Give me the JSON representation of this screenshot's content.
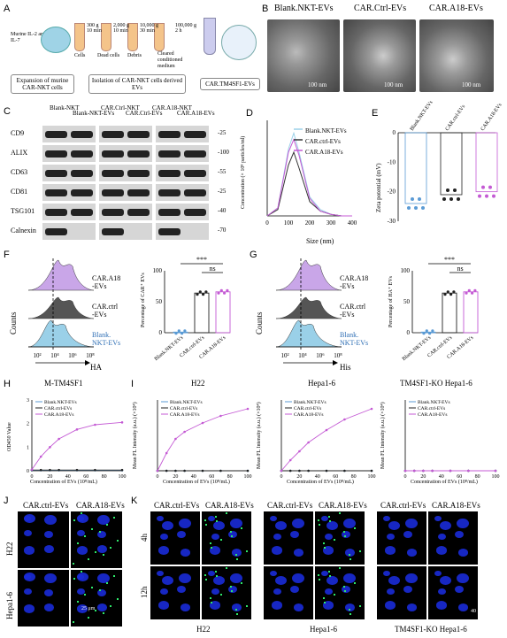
{
  "panels": {
    "A": {
      "label": "A",
      "cytokines": "Murine IL-2 and IL-7",
      "spins": [
        "300 g\n10 min",
        "2,000 g\n10 min",
        "10,000 g\n30 min",
        "100,000 g\n2 h"
      ],
      "step_labels": [
        "Cells",
        "Dead cells",
        "Debris",
        "Cleared conditioned medium"
      ],
      "box1": "Expansion of murine CAR-NKT cells",
      "box2": "Isolation of CAR-NKT cells derived EVs",
      "box3": "CAR.TM4SF1-EVs"
    },
    "B": {
      "label": "B",
      "titles": [
        "Blank.NKT-EVs",
        "CAR.Ctrl-EVs",
        "CAR.A18-EVs"
      ],
      "scale": "100 nm"
    },
    "C": {
      "label": "C",
      "lanes": [
        "Blank-NKT",
        "Blank-NKT-EVs",
        "CAR.Ctrl-NKT",
        "CAR.Ctrl-EVs",
        "CAR.A18-NKT",
        "CAR.A18-EVs"
      ],
      "proteins": [
        "CD9",
        "ALIX",
        "CD63",
        "CD81",
        "TSG101",
        "Calnexin"
      ],
      "kda": [
        "-25",
        "-100",
        "-55",
        "-25",
        "-40",
        "-70"
      ]
    },
    "D": {
      "label": "D",
      "legend": [
        "Blank.NKT-EVs",
        "CAR.ctrl-EVs",
        "CAR.A18-EVs"
      ],
      "ylabel": "Concentration (× 10⁸ particles/ml)",
      "xlabel": "Size (nm)",
      "xticks": [
        "0",
        "100",
        "200",
        "300",
        "400"
      ]
    },
    "E": {
      "label": "E",
      "cats": [
        "Blank.NKT-EVs",
        "CAR.ctrl-EVs",
        "CAR.A18-EVs"
      ],
      "ylabel": "Zeta potential (mV)",
      "yticks": [
        "0",
        "-10",
        "-20",
        "-30"
      ]
    },
    "F": {
      "label": "F",
      "ylabel": "Counts",
      "xlabel": "HA",
      "pops": [
        "CAR.A18\n-EVs",
        "CAR.ctrl\n-EVs",
        "Blank.\nNKT-EVs"
      ],
      "bar_ylabel": "Percentage of CAR⁺ EVs",
      "sig": [
        "***",
        "ns"
      ],
      "yticks": [
        "0",
        "50",
        "100"
      ],
      "cats": [
        "Blank.NKT-EVs",
        "CAR.ctrl-EVs",
        "CAR.A18-EVs"
      ]
    },
    "G": {
      "label": "G",
      "ylabel": "Counts",
      "xlabel": "His",
      "pops": [
        "CAR.A18\n-EVs",
        "CAR.ctrl\n-EVs",
        "Blank.\nNKT-EVs"
      ],
      "bar_ylabel": "Percentage of HA⁺ EVs",
      "sig": [
        "***",
        "ns"
      ],
      "yticks": [
        "0",
        "50",
        "100"
      ],
      "cats": [
        "Blank.NKT-EVs",
        "CAR.ctrl-EVs",
        "CAR.A18-EVs"
      ]
    },
    "H": {
      "label": "H",
      "title": "M-TM4SF1",
      "legend": [
        "Blank.NKT-EVs",
        "CAR.ctrl-EVs",
        "CAR.A18-EVs"
      ],
      "ylabel": "OD450 Value",
      "xlabel": "Concentration of EVs (10⁸/mL)",
      "xticks": [
        "0",
        "20",
        "40",
        "60",
        "80",
        "100"
      ],
      "yticks": [
        "0",
        "1",
        "2",
        "3"
      ]
    },
    "I": {
      "label": "I",
      "titles": [
        "H22",
        "Hepa1-6",
        "TM4SF1-KO Hepa1-6"
      ],
      "legend": [
        "Blank.NKT-EVs",
        "CAR.ctrl-EVs",
        "CAR.A18-EVs"
      ],
      "ylabel": "Mean FL Intensity (a.u.) (×10⁴)",
      "xlabel": "Concentration of EVs (10⁸/mL)",
      "xticks": [
        "0",
        "20",
        "40",
        "60",
        "80",
        "100"
      ]
    },
    "J": {
      "label": "J",
      "cols": [
        "CAR.ctrl-EVs",
        "CAR.A18-EVs"
      ],
      "rows": [
        "H22",
        "Hepa1-6"
      ],
      "scale": "25 μm"
    },
    "K": {
      "label": "K",
      "cols": [
        "CAR.ctrl-EVs",
        "CAR.A18-EVs",
        "CAR.ctrl-EVs",
        "CAR.A18-EVs",
        "CAR.ctrl-EVs",
        "CAR.A18-EVs"
      ],
      "rows": [
        "4h",
        "12h"
      ],
      "groups": [
        "H22",
        "Hepa1-6",
        "TM4SF1-KO Hepa1-6"
      ],
      "scale": "40 μm"
    }
  },
  "colors": {
    "blank": "#5b9bd5",
    "ctrl": "#222222",
    "a18": "#c45ad4"
  },
  "chart_data": [
    {
      "type": "line",
      "panel": "D",
      "x": [
        0,
        50,
        100,
        125,
        150,
        200,
        250,
        300,
        350,
        400
      ],
      "series": [
        {
          "name": "Blank.NKT-EVs",
          "values": [
            0,
            5,
            42,
            52,
            40,
            12,
            4,
            1,
            0,
            0
          ]
        },
        {
          "name": "CAR.ctrl-EVs",
          "values": [
            0,
            4,
            32,
            40,
            30,
            9,
            3,
            1,
            0,
            0
          ]
        },
        {
          "name": "CAR.A18-EVs",
          "values": [
            0,
            5,
            40,
            48,
            38,
            11,
            3,
            1,
            0,
            0
          ]
        }
      ]
    },
    {
      "type": "scatter",
      "panel": "E",
      "categories": [
        "Blank.NKT-EVs",
        "CAR.ctrl-EVs",
        "CAR.A18-EVs"
      ],
      "values": [
        -24,
        -21,
        -20
      ],
      "ylim": [
        -30,
        0
      ]
    },
    {
      "type": "bar",
      "panel": "F",
      "categories": [
        "Blank.NKT-EVs",
        "CAR.ctrl-EVs",
        "CAR.A18-EVs"
      ],
      "values": [
        1,
        64,
        66
      ],
      "ylim": [
        0,
        100
      ]
    },
    {
      "type": "bar",
      "panel": "G",
      "categories": [
        "Blank.NKT-EVs",
        "CAR.ctrl-EVs",
        "CAR.A18-EVs"
      ],
      "values": [
        1,
        64,
        66
      ],
      "ylim": [
        0,
        100
      ]
    },
    {
      "type": "line",
      "panel": "H",
      "x": [
        0,
        10,
        20,
        30,
        50,
        70,
        100
      ],
      "series": [
        {
          "name": "Blank.NKT-EVs",
          "values": [
            0.02,
            0.02,
            0.02,
            0.02,
            0.02,
            0.02,
            0.02
          ]
        },
        {
          "name": "CAR.ctrl-EVs",
          "values": [
            0.03,
            0.03,
            0.03,
            0.03,
            0.03,
            0.03,
            0.03
          ]
        },
        {
          "name": "CAR.A18-EVs",
          "values": [
            0.05,
            0.6,
            1.0,
            1.35,
            1.75,
            1.95,
            2.05
          ]
        }
      ],
      "ylim": [
        0,
        3
      ]
    },
    {
      "type": "line",
      "panel": "I-H22",
      "x": [
        0,
        10,
        20,
        30,
        50,
        70,
        100
      ],
      "series": [
        {
          "name": "Blank.NKT-EVs",
          "values": [
            0,
            0,
            0,
            0,
            0,
            0,
            0
          ]
        },
        {
          "name": "CAR.ctrl-EVs",
          "values": [
            0,
            0,
            0,
            0,
            0,
            0,
            0
          ]
        },
        {
          "name": "CAR.A18-EVs",
          "values": [
            0,
            0.5,
            0.9,
            1.1,
            1.35,
            1.55,
            1.75
          ]
        }
      ],
      "ylim": [
        0,
        2
      ]
    },
    {
      "type": "line",
      "panel": "I-Hepa1-6",
      "x": [
        0,
        10,
        20,
        30,
        50,
        70,
        100
      ],
      "series": [
        {
          "name": "Blank.NKT-EVs",
          "values": [
            0,
            0,
            0,
            0,
            0,
            0,
            0
          ]
        },
        {
          "name": "CAR.ctrl-EVs",
          "values": [
            0,
            0,
            0,
            0,
            0,
            0,
            0
          ]
        },
        {
          "name": "CAR.A18-EVs",
          "values": [
            0,
            0.3,
            0.55,
            0.8,
            1.15,
            1.45,
            1.75
          ]
        }
      ],
      "ylim": [
        0,
        2
      ]
    },
    {
      "type": "line",
      "panel": "I-KO",
      "x": [
        0,
        10,
        20,
        30,
        50,
        70,
        100
      ],
      "series": [
        {
          "name": "Blank.NKT-EVs",
          "values": [
            0,
            0,
            0,
            0,
            0,
            0,
            0
          ]
        },
        {
          "name": "CAR.ctrl-EVs",
          "values": [
            0,
            0,
            0,
            0,
            0,
            0,
            0
          ]
        },
        {
          "name": "CAR.A18-EVs",
          "values": [
            0,
            0,
            0,
            0,
            0,
            0,
            0
          ]
        }
      ],
      "ylim": [
        0,
        2
      ]
    }
  ]
}
